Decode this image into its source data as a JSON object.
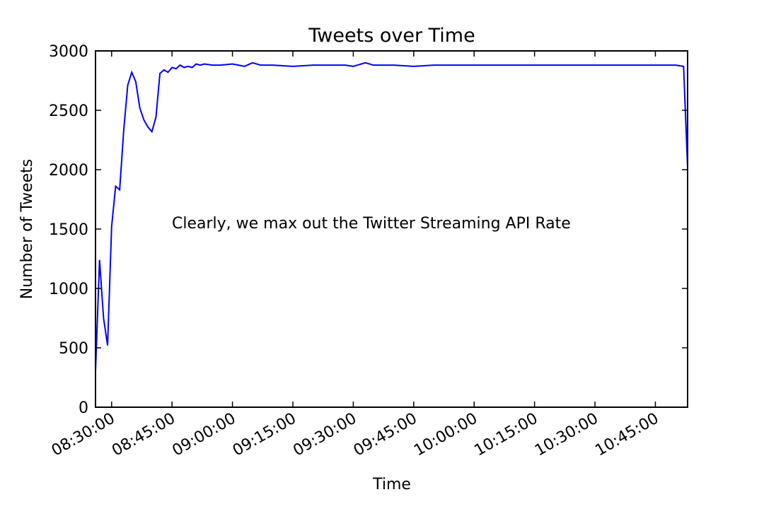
{
  "chart_data": {
    "type": "line",
    "title": "Tweets over Time",
    "xlabel": "Time",
    "ylabel": "Number of Tweets",
    "annotation": "Clearly, we max out the Twitter Streaming API Rate",
    "ylim": [
      0,
      3000
    ],
    "xlim": [
      "08:26:00",
      "10:53:00"
    ],
    "yticks": [
      "0",
      "500",
      "1000",
      "1500",
      "2000",
      "2500",
      "3000"
    ],
    "xticks": [
      "08:30:00",
      "08:45:00",
      "09:00:00",
      "09:15:00",
      "09:30:00",
      "09:45:00",
      "10:00:00",
      "10:15:00",
      "10:30:00",
      "10:45:00"
    ],
    "grid": false,
    "colors": {
      "series": "#0000ff"
    },
    "series": [
      {
        "x": [
          "08:26:00",
          "08:27:00",
          "08:28:00",
          "08:29:00",
          "08:30:00",
          "08:31:00",
          "08:32:00",
          "08:33:00",
          "08:34:00",
          "08:35:00",
          "08:36:00",
          "08:37:00",
          "08:38:00",
          "08:39:00",
          "08:40:00",
          "08:41:00",
          "08:42:00",
          "08:43:00",
          "08:44:00",
          "08:45:00",
          "08:46:00",
          "08:47:00",
          "08:48:00",
          "08:49:00",
          "08:50:00",
          "08:51:00",
          "08:52:00",
          "08:53:00",
          "08:55:00",
          "08:57:00",
          "09:00:00",
          "09:03:00",
          "09:05:00",
          "09:07:00",
          "09:10:00",
          "09:15:00",
          "09:20:00",
          "09:25:00",
          "09:28:00",
          "09:30:00",
          "09:33:00",
          "09:35:00",
          "09:38:00",
          "09:40:00",
          "09:45:00",
          "09:50:00",
          "09:55:00",
          "10:00:00",
          "10:05:00",
          "10:10:00",
          "10:15:00",
          "10:20:00",
          "10:25:00",
          "10:30:00",
          "10:35:00",
          "10:40:00",
          "10:45:00",
          "10:48:00",
          "10:50:00",
          "10:52:00",
          "10:53:00"
        ],
        "y": [
          300,
          1240,
          750,
          520,
          1520,
          1860,
          1830,
          2330,
          2710,
          2820,
          2740,
          2520,
          2420,
          2360,
          2320,
          2440,
          2810,
          2840,
          2820,
          2860,
          2850,
          2880,
          2860,
          2870,
          2860,
          2890,
          2880,
          2890,
          2880,
          2880,
          2890,
          2870,
          2900,
          2880,
          2880,
          2870,
          2880,
          2880,
          2880,
          2870,
          2900,
          2880,
          2880,
          2880,
          2870,
          2880,
          2880,
          2880,
          2880,
          2880,
          2880,
          2880,
          2880,
          2880,
          2880,
          2880,
          2880,
          2880,
          2880,
          2870,
          2020
        ]
      }
    ]
  }
}
